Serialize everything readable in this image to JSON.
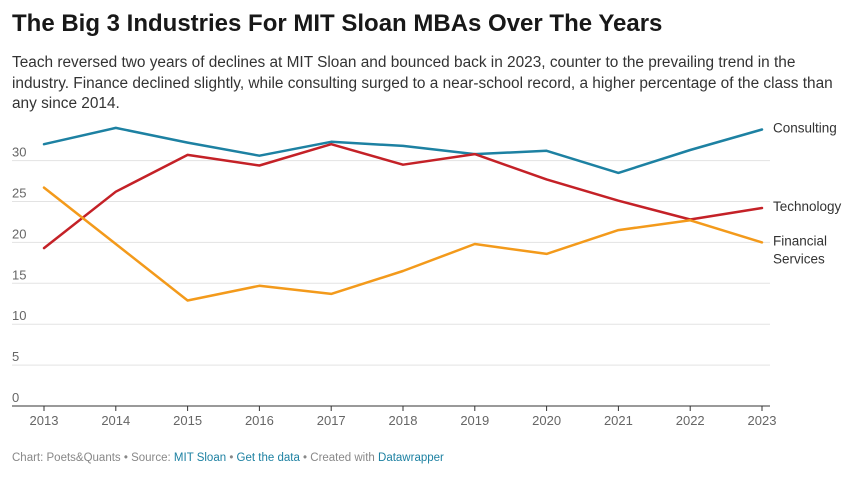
{
  "title": "The Big 3 Industries For MIT Sloan MBAs Over The Years",
  "subtitle": "Teach reversed two years of declines at MIT Sloan and bounced back in 2023, counter to the prevailing trend in the industry. Finance declined slightly, while consulting surged to a near-school record, a higher percentage of the class than any since 2014.",
  "footer": {
    "chart_credit": "Chart: Poets&Quants • Source: ",
    "source_link": "MIT Sloan",
    "sep1": " • ",
    "data_link": "Get the data",
    "sep2": " • Created with ",
    "tool_link": "Datawrapper"
  },
  "chart_data": {
    "type": "line",
    "x": [
      "2013",
      "2014",
      "2015",
      "2016",
      "2017",
      "2018",
      "2019",
      "2020",
      "2021",
      "2022",
      "2023"
    ],
    "ylim": [
      0,
      30
    ],
    "yticks": [
      0,
      5,
      10,
      15,
      20,
      25,
      30
    ],
    "grid": true,
    "legend": "inline-right",
    "series": [
      {
        "name": "Consulting",
        "label_lines": [
          "Consulting"
        ],
        "color": "#1d81a2",
        "values": [
          32.0,
          34.0,
          32.2,
          30.6,
          32.3,
          31.8,
          30.8,
          31.2,
          28.5,
          31.3,
          33.8
        ]
      },
      {
        "name": "Technology",
        "label_lines": [
          "Technology"
        ],
        "color": "#c42127",
        "values": [
          19.3,
          26.2,
          30.7,
          29.4,
          32.0,
          29.5,
          30.8,
          27.7,
          25.1,
          22.8,
          24.2
        ]
      },
      {
        "name": "Financial Services",
        "label_lines": [
          "Financial",
          "Services"
        ],
        "color": "#f39a1b",
        "values": [
          26.7,
          19.8,
          12.9,
          14.7,
          13.7,
          16.5,
          19.8,
          18.6,
          21.5,
          22.7,
          20.0
        ]
      }
    ]
  }
}
